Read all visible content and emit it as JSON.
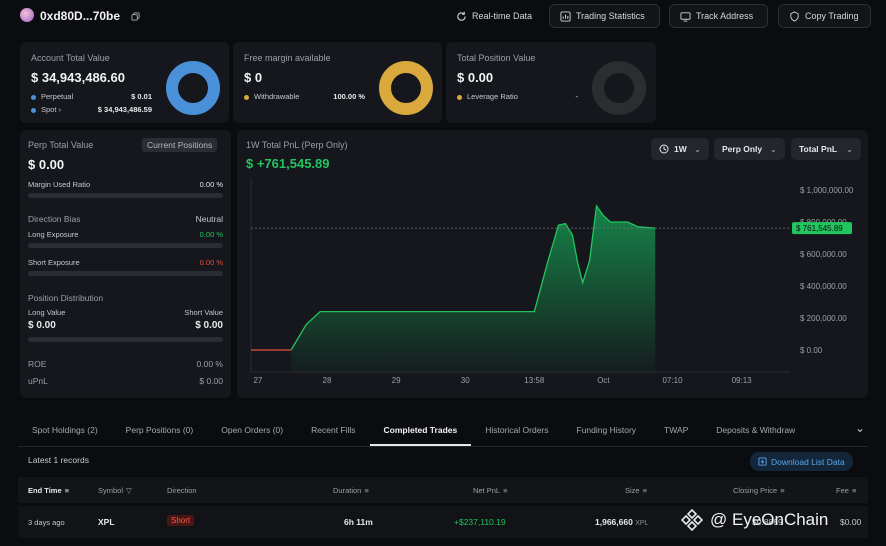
{
  "header": {
    "address": "0xd80D...70be",
    "buttons": {
      "realtime": "Real-time Data",
      "stats": "Trading Statistics",
      "track": "Track Address",
      "copy": "Copy Trading"
    }
  },
  "account": {
    "title": "Account Total Value",
    "value": "$ 34,943,486.60",
    "perp_label": "Perpetual",
    "perp_value": "$ 0.01",
    "spot_label": "Spot",
    "spot_value": "$ 34,943,486.59",
    "colors": {
      "perp": "#4a90d9",
      "spot": "#4a90d9"
    }
  },
  "margin": {
    "title": "Free margin available",
    "value": "$ 0",
    "withdrawable_label": "Withdrawable",
    "withdrawable_value": "100.00 %",
    "color": "#d9a93e"
  },
  "position": {
    "title": "Total Position Value",
    "value": "$ 0.00",
    "leverage_label": "Leverage Ratio",
    "leverage_value": "-",
    "color": "#d9a93e"
  },
  "perp": {
    "title": "Perp Total Value",
    "current_positions_btn": "Current Positions",
    "value": "$ 0.00",
    "margin_used_label": "Margin Used Ratio",
    "margin_used_value": "0.00 %",
    "direction_bias_label": "Direction Bias",
    "direction_bias_value": "Neutral",
    "long_exposure_label": "Long Exposure",
    "long_exposure_value": "0.00 %",
    "short_exposure_label": "Short Exposure",
    "short_exposure_value": "0.00 %",
    "position_dist_label": "Position Distribution",
    "long_value_label": "Long Value",
    "short_value_label": "Short Value",
    "long_value": "$ 0.00",
    "short_value": "$ 0.00",
    "roe_label": "ROE",
    "roe_value": "0.00 %",
    "upnl_label": "uPnL",
    "upnl_value": "$ 0.00"
  },
  "pnl": {
    "title": "1W Total PnL (Perp Only)",
    "value": "$ +761,545.89",
    "controls": {
      "period": "1W",
      "scope": "Perp Only",
      "metric": "Total PnL"
    }
  },
  "chart_data": {
    "type": "area",
    "title": "1W Total PnL (Perp Only)",
    "x_ticks": [
      "27",
      "28",
      "29",
      "30",
      "13:58",
      "Oct",
      "07:10",
      "09:13"
    ],
    "y_ticks": [
      "$ 1,000,000.00",
      "$ 800,000.00",
      "$ 600,000.00",
      "$ 400,000.00",
      "$ 200,000.00",
      "$ 0.00"
    ],
    "ylim": [
      0,
      1000000
    ],
    "current_label": "$ 761,545.89",
    "current_value": 761545.89,
    "series": [
      {
        "x": [
          0,
          0.12,
          0.5,
          0.55,
          0.58,
          0.8,
          1.0,
          1.3,
          1.4,
          4.1,
          4.3,
          4.45,
          4.55,
          4.65,
          4.73,
          4.8,
          4.9,
          5.0,
          5.1,
          5.2,
          5.3,
          5.45,
          5.6,
          5.85
        ],
        "y": [
          0,
          0,
          0,
          0,
          0,
          160000,
          240000,
          240000,
          240000,
          240000,
          560000,
          780000,
          790000,
          720000,
          540000,
          420000,
          560000,
          900000,
          840000,
          800000,
          800000,
          800000,
          770000,
          761545.89
        ]
      }
    ],
    "colors": {
      "line": "#22c55e",
      "area_top": "#178a4b",
      "pre_line": "#e0503c"
    }
  },
  "tabs": [
    "Spot Holdings (2)",
    "Perp Positions (0)",
    "Open Orders (0)",
    "Recent Fills",
    "Completed Trades",
    "Historical Orders",
    "Funding History",
    "TWAP",
    "Deposits & Withdraw"
  ],
  "active_tab": "Completed Trades",
  "table": {
    "records": "Latest 1 records",
    "download": "Download List Data",
    "headers": [
      "End Time",
      "Symbol",
      "Direction",
      "Duration",
      "Net PnL",
      "Size",
      "Closing Price",
      "Fee"
    ],
    "rows": [
      {
        "end_time": "3 days ago",
        "symbol": "XPL",
        "direction": "Short",
        "duration": "6h 11m",
        "net_pnl": "+$237,110.19",
        "size": "1,966,660",
        "size_unit": "XPL",
        "closing_price": "$0.8869",
        "fee": "$0.00"
      }
    ]
  },
  "watermark": "@ EyeOnChain"
}
